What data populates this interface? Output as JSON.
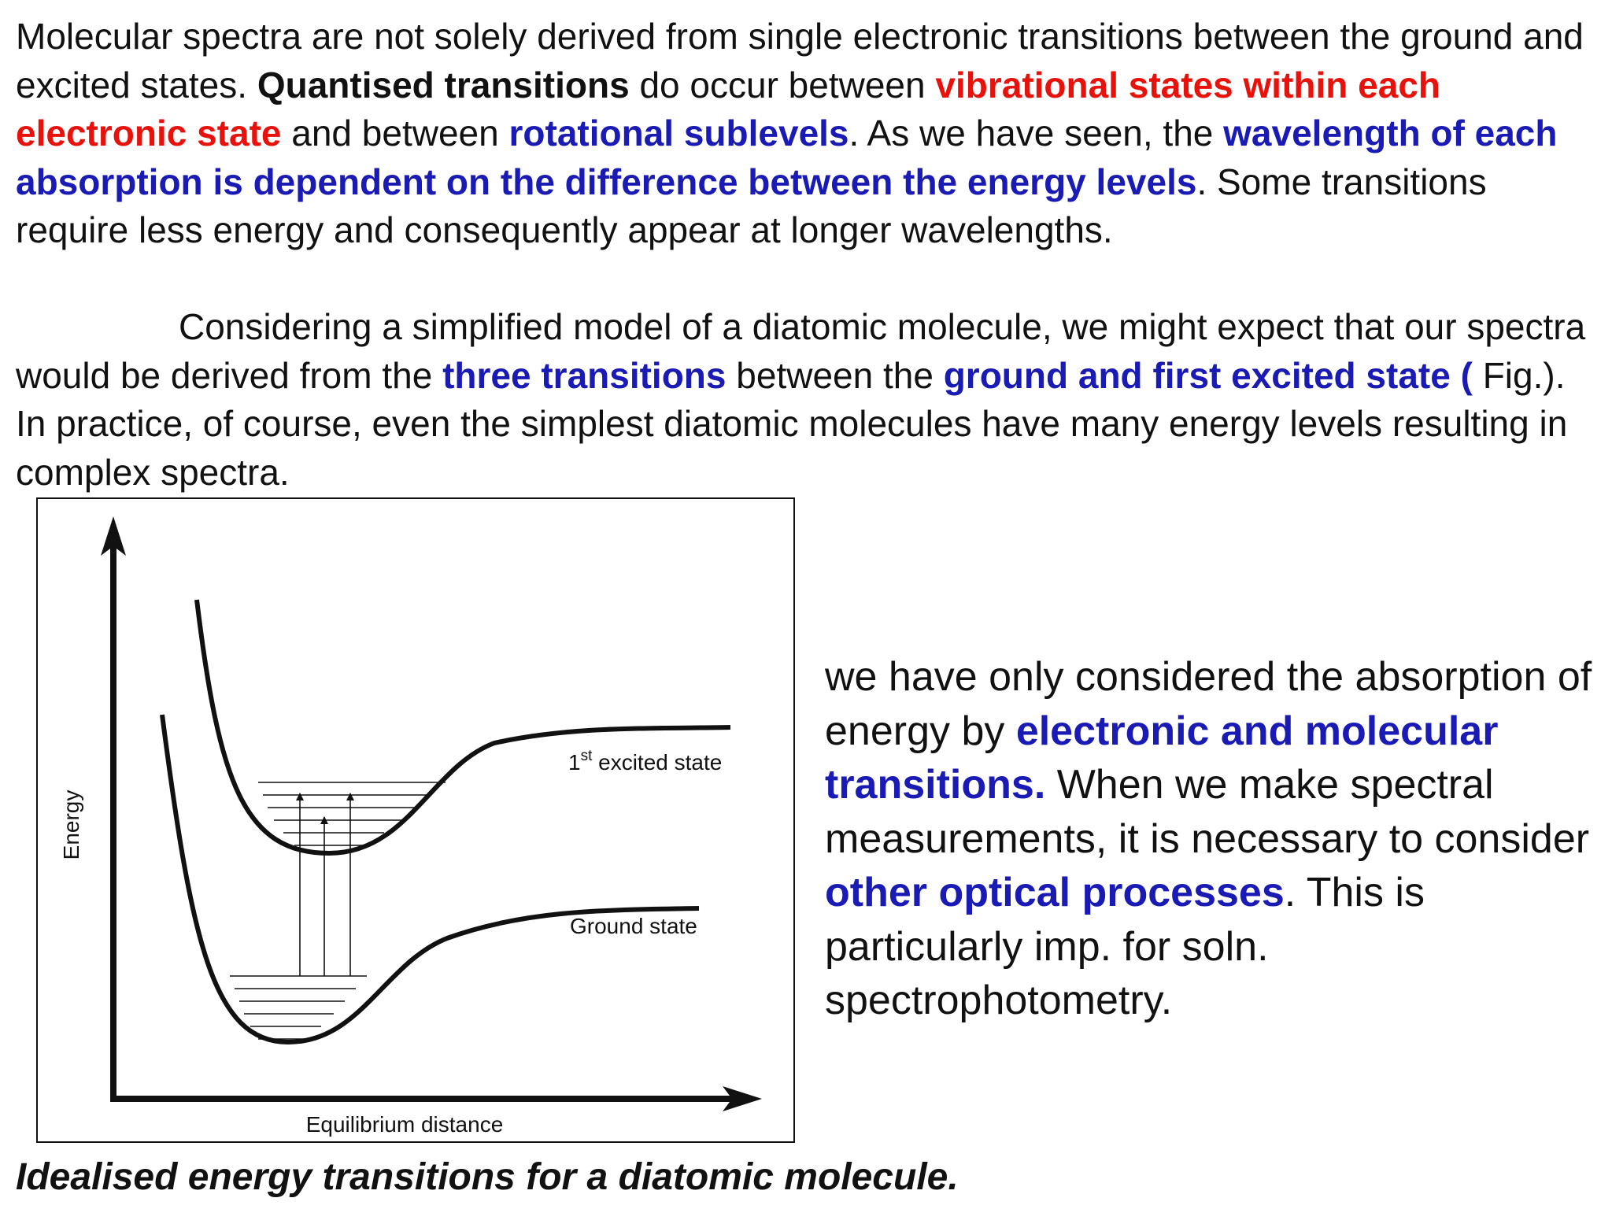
{
  "paragraph1": {
    "t1": "Molecular spectra are not solely derived from single electronic transitions between the ground and excited states. ",
    "t2": "Quantised transitions",
    "t3": " do occur between ",
    "t4": "vibrational states within each electronic state",
    "t5": " and between ",
    "t6": "rotational sublevels",
    "t7": ". As we have seen, the ",
    "t8": "wavelength of each absorption is dependent on the difference between the energy levels",
    "t9": ". Some transitions require less energy and consequently appear at longer wavelengths."
  },
  "paragraph2": {
    "t1": "Considering a simplified model of a diatomic molecule, we might expect that our spectra would be derived from the ",
    "t2": "three transitions",
    "t3": " between the ",
    "t4": "ground and first excited state (",
    "t5": " Fig.). In practice, of course, even the simplest diatomic molecules have many energy levels resulting in complex spectra."
  },
  "figure": {
    "y_axis_label": "Energy",
    "x_axis_label": "Equilibrium distance",
    "excited_label_num": "1",
    "excited_label_sup": "st",
    "excited_label_rest": " excited state",
    "ground_label": "Ground state"
  },
  "side_text": {
    "t1": "we have only considered the absorption of energy by ",
    "t2": "electronic and molecular transitions.",
    "t3": " When we make spectral measurements, it is necessary to consider ",
    "t4": "other optical processes",
    "t5": ". This is particularly imp. for soln. spectrophotometry."
  },
  "caption": "Idealised energy transitions for a diatomic molecule.",
  "colors": {
    "emphasis_red": "#e8120c",
    "emphasis_blue": "#1a1ab4"
  }
}
